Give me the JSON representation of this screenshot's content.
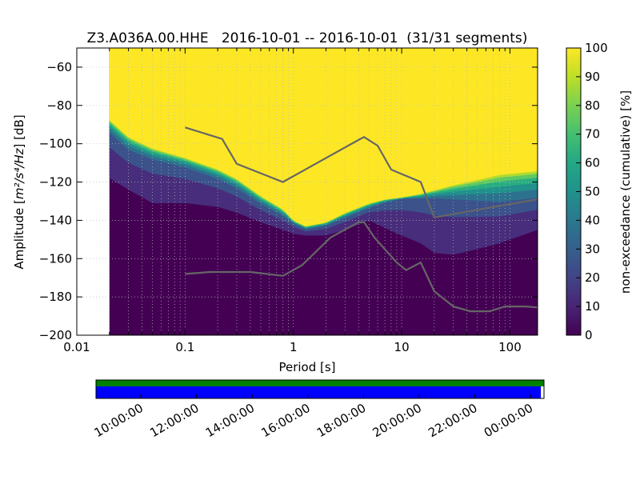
{
  "chart_data": {
    "type": "heatmap",
    "title": "Z3.A036A.00.HHE   2016-10-01 -- 2016-10-01  (31/31 segments)",
    "xlabel": "Period [s]",
    "ylabel_prefix": "Amplitude [",
    "ylabel_math": "m²/s⁴/Hz",
    "ylabel_suffix": "] [dB]",
    "colorbar_label": "non-exceedance (cumulative) [%]",
    "x_scale": "log",
    "xlim": [
      0.01,
      180
    ],
    "ylim": [
      -200,
      -50
    ],
    "x_ticks": [
      0.01,
      0.1,
      1,
      10,
      100
    ],
    "x_tick_labels": [
      "0.01",
      "0.1",
      "1",
      "10",
      "100"
    ],
    "y_ticks": [
      -60,
      -80,
      -100,
      -120,
      -140,
      -160,
      -180,
      -200
    ],
    "y_tick_labels": [
      "−60",
      "−80",
      "−100",
      "−120",
      "−140",
      "−160",
      "−180",
      "−200"
    ],
    "colorbar_ticks": [
      0,
      10,
      20,
      30,
      40,
      50,
      60,
      70,
      80,
      90,
      100
    ],
    "colorbar_tick_labels": [
      "0",
      "10",
      "20",
      "30",
      "40",
      "50",
      "60",
      "70",
      "80",
      "90",
      "100"
    ],
    "colormap": "viridis",
    "grid": true,
    "data_start_period": 0.02,
    "low_edge": {
      "period": [
        0.02,
        0.03,
        0.05,
        0.1,
        0.2,
        0.3,
        0.5,
        0.8,
        1.0,
        1.3,
        2,
        3,
        5,
        7,
        10,
        15,
        20,
        30,
        50,
        80,
        180
      ],
      "db": [
        -118,
        -124,
        -131,
        -131,
        -133,
        -136,
        -141,
        -145,
        -147,
        -148,
        -148,
        -145,
        -140,
        -144,
        -148,
        -152,
        -157,
        -158,
        -155,
        -152,
        -145
      ]
    },
    "mid_edge": {
      "period": [
        0.02,
        0.03,
        0.05,
        0.1,
        0.2,
        0.3,
        0.5,
        0.8,
        1.0,
        1.3,
        2,
        3,
        5,
        7,
        10,
        15,
        20,
        30,
        50,
        80,
        180
      ],
      "db": [
        -95,
        -104,
        -109,
        -113,
        -119,
        -124,
        -132,
        -138,
        -142,
        -145,
        -143,
        -139,
        -134,
        -131,
        -129,
        -129,
        -129,
        -130,
        -131,
        -132,
        -130
      ]
    },
    "high_edge": {
      "period": [
        0.02,
        0.03,
        0.05,
        0.1,
        0.2,
        0.3,
        0.5,
        0.8,
        1.0,
        1.3,
        2,
        3,
        5,
        7,
        10,
        15,
        20,
        30,
        50,
        80,
        180
      ],
      "db": [
        -87,
        -96,
        -102,
        -107,
        -113,
        -118,
        -127,
        -134,
        -140,
        -143,
        -141,
        -136,
        -131,
        -129,
        -128,
        -126,
        -124,
        -121,
        -118,
        -115,
        -113
      ]
    },
    "series": [
      {
        "color": "#666666",
        "x": [
          0.1,
          0.22,
          0.3,
          0.8,
          4.0,
          4.5,
          6.0,
          8.0,
          15,
          20,
          180
        ],
        "y": [
          -91.5,
          -97.5,
          -110.5,
          -120,
          -98,
          -96.5,
          -101,
          -113.5,
          -120,
          -138.5,
          -129
        ]
      },
      {
        "color": "#666666",
        "x": [
          0.1,
          0.17,
          0.4,
          0.8,
          1.2,
          2.2,
          4.0,
          4.5,
          5.6,
          9,
          11,
          15,
          20,
          30,
          43,
          65,
          90,
          140,
          180
        ],
        "y": [
          -168,
          -167,
          -167,
          -169,
          -163.5,
          -149,
          -141,
          -141,
          -149,
          -162,
          -166,
          -162,
          -177,
          -185,
          -187.5,
          -187.5,
          -185,
          -185,
          -185.5
        ]
      }
    ],
    "timeline": {
      "tick_labels": [
        "10:00:00",
        "12:00:00",
        "14:00:00",
        "16:00:00",
        "18:00:00",
        "20:00:00",
        "22:00:00",
        "00:00:00"
      ],
      "top_bar_color": "#008000",
      "bottom_bar_color": "#0000ff",
      "coverage_end_fraction": 0.993
    }
  }
}
